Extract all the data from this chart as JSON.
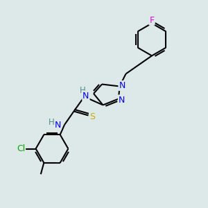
{
  "background_color": "#dde8e8",
  "bond_color": "#000000",
  "atom_colors": {
    "N": "#0000ff",
    "S": "#ccaa00",
    "Cl": "#00aa00",
    "F": "#ee00ee",
    "H": "#4a9090",
    "C": "#000000"
  },
  "figsize": [
    3.0,
    3.0
  ],
  "dpi": 100
}
